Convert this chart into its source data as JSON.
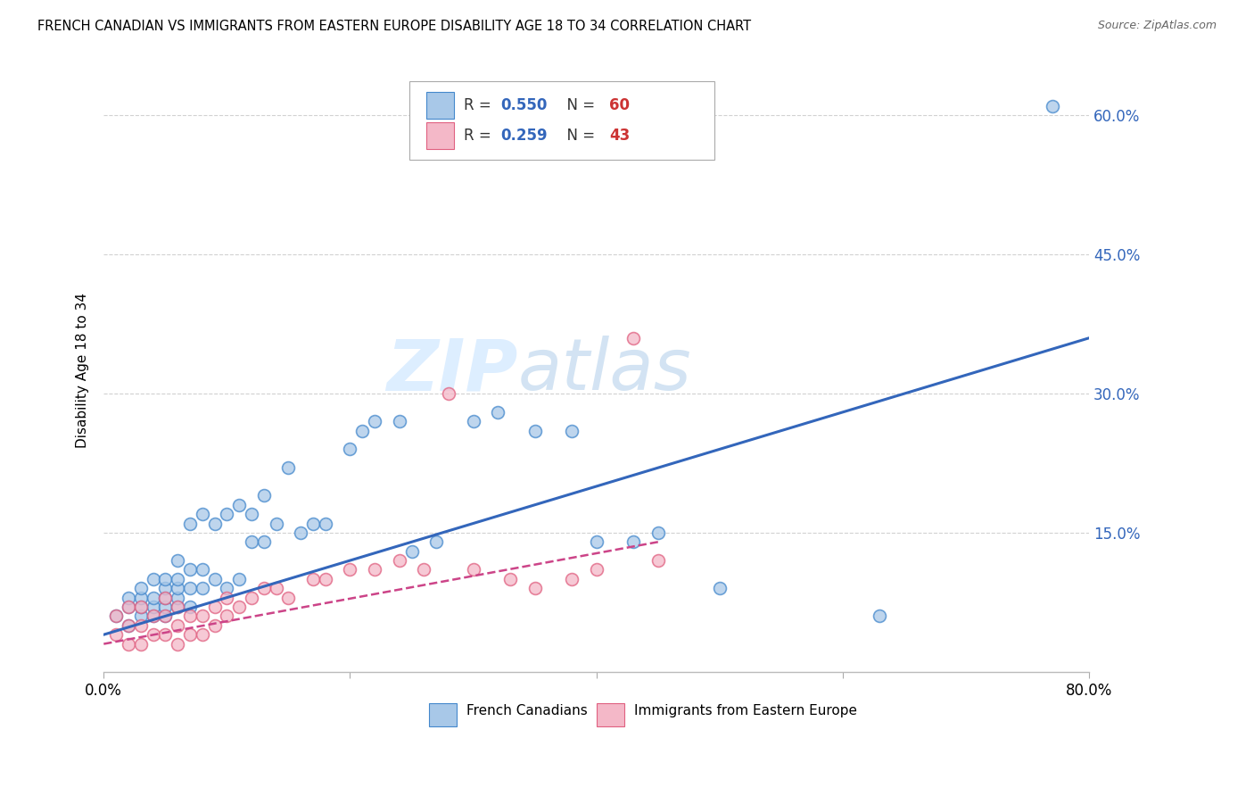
{
  "title": "FRENCH CANADIAN VS IMMIGRANTS FROM EASTERN EUROPE DISABILITY AGE 18 TO 34 CORRELATION CHART",
  "source": "Source: ZipAtlas.com",
  "ylabel": "Disability Age 18 to 34",
  "xlim": [
    0.0,
    0.8
  ],
  "ylim": [
    0.0,
    0.65
  ],
  "yticks": [
    0.15,
    0.3,
    0.45,
    0.6
  ],
  "yticklabels": [
    "15.0%",
    "30.0%",
    "45.0%",
    "60.0%"
  ],
  "blue_R": 0.55,
  "blue_N": 60,
  "pink_R": 0.259,
  "pink_N": 43,
  "blue_color": "#a8c8e8",
  "pink_color": "#f4b8c8",
  "blue_edge_color": "#4488cc",
  "pink_edge_color": "#e06080",
  "blue_line_color": "#3366bb",
  "pink_line_color": "#cc4488",
  "watermark_color": "#ddeeff",
  "blue_scatter_x": [
    0.01,
    0.02,
    0.02,
    0.02,
    0.03,
    0.03,
    0.03,
    0.03,
    0.04,
    0.04,
    0.04,
    0.04,
    0.05,
    0.05,
    0.05,
    0.05,
    0.05,
    0.06,
    0.06,
    0.06,
    0.06,
    0.06,
    0.07,
    0.07,
    0.07,
    0.07,
    0.08,
    0.08,
    0.08,
    0.09,
    0.09,
    0.1,
    0.1,
    0.11,
    0.11,
    0.12,
    0.12,
    0.13,
    0.13,
    0.14,
    0.15,
    0.16,
    0.17,
    0.18,
    0.2,
    0.21,
    0.22,
    0.24,
    0.25,
    0.27,
    0.3,
    0.32,
    0.35,
    0.38,
    0.4,
    0.43,
    0.45,
    0.5,
    0.63,
    0.77
  ],
  "blue_scatter_y": [
    0.06,
    0.05,
    0.07,
    0.08,
    0.06,
    0.07,
    0.08,
    0.09,
    0.06,
    0.07,
    0.08,
    0.1,
    0.06,
    0.07,
    0.08,
    0.09,
    0.1,
    0.07,
    0.08,
    0.09,
    0.1,
    0.12,
    0.07,
    0.09,
    0.11,
    0.16,
    0.09,
    0.11,
    0.17,
    0.1,
    0.16,
    0.09,
    0.17,
    0.1,
    0.18,
    0.14,
    0.17,
    0.14,
    0.19,
    0.16,
    0.22,
    0.15,
    0.16,
    0.16,
    0.24,
    0.26,
    0.27,
    0.27,
    0.13,
    0.14,
    0.27,
    0.28,
    0.26,
    0.26,
    0.14,
    0.14,
    0.15,
    0.09,
    0.06,
    0.61
  ],
  "pink_scatter_x": [
    0.01,
    0.01,
    0.02,
    0.02,
    0.02,
    0.03,
    0.03,
    0.03,
    0.04,
    0.04,
    0.05,
    0.05,
    0.05,
    0.06,
    0.06,
    0.06,
    0.07,
    0.07,
    0.08,
    0.08,
    0.09,
    0.09,
    0.1,
    0.1,
    0.11,
    0.12,
    0.13,
    0.14,
    0.15,
    0.17,
    0.18,
    0.2,
    0.22,
    0.24,
    0.26,
    0.28,
    0.3,
    0.33,
    0.35,
    0.38,
    0.4,
    0.43,
    0.45
  ],
  "pink_scatter_y": [
    0.04,
    0.06,
    0.03,
    0.05,
    0.07,
    0.03,
    0.05,
    0.07,
    0.04,
    0.06,
    0.04,
    0.06,
    0.08,
    0.03,
    0.05,
    0.07,
    0.04,
    0.06,
    0.04,
    0.06,
    0.05,
    0.07,
    0.06,
    0.08,
    0.07,
    0.08,
    0.09,
    0.09,
    0.08,
    0.1,
    0.1,
    0.11,
    0.11,
    0.12,
    0.11,
    0.3,
    0.11,
    0.1,
    0.09,
    0.1,
    0.11,
    0.36,
    0.12
  ],
  "blue_line_x0": 0.0,
  "blue_line_x1": 0.8,
  "blue_line_y0": 0.04,
  "blue_line_y1": 0.36,
  "pink_line_x0": 0.0,
  "pink_line_x1": 0.45,
  "pink_line_y0": 0.03,
  "pink_line_y1": 0.14
}
